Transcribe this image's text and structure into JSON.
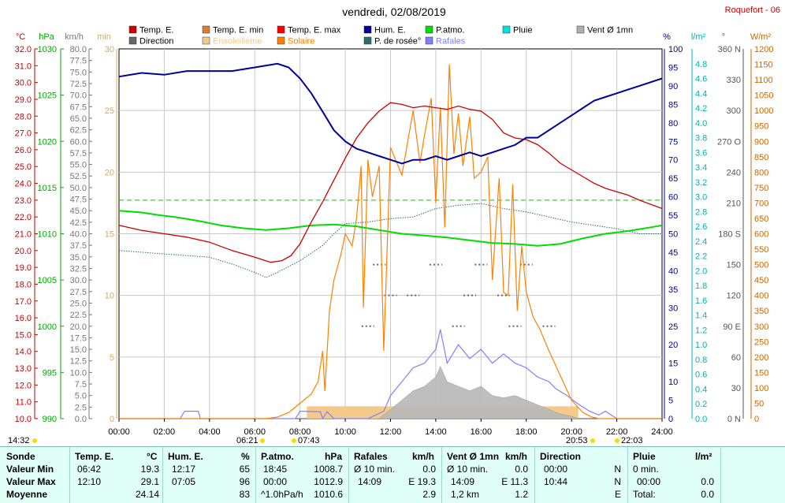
{
  "title": "vendredi, 02/08/2019",
  "station": "Roquefort - 06",
  "colors": {
    "temp": "#cc0000",
    "temp_min": "#e07a3a",
    "temp_max": "#ff0000",
    "direction": "#666666",
    "ensoleillement": "#f5c98a",
    "solaire": "#ff8000",
    "humidity": "#000099",
    "dew": "#2a6e6e",
    "pressure": "#00dd00",
    "pluie": "#00cccc",
    "rafales": "#8080ff",
    "vent": "#b0b0b0",
    "axis_c": "#cc0000",
    "axis_hpa": "#00aa00",
    "axis_kmh": "#777777",
    "axis_min": "#d9a95a",
    "axis_pct": "#000099",
    "axis_rain": "#00b3b3",
    "axis_deg": "#555555",
    "axis_w": "#cc6600"
  },
  "legend": [
    {
      "label": "Temp. E.",
      "color": "#cc0000"
    },
    {
      "label": "Temp. E. min",
      "color": "#e07a3a"
    },
    {
      "label": "Temp. E. max",
      "color": "#ff0000"
    },
    {
      "label": "Hum. E.",
      "color": "#000099"
    },
    {
      "label": "P.atmo.",
      "color": "#00dd00"
    },
    {
      "label": "Pluie",
      "color": "#00e0e0"
    },
    {
      "label": "Vent Ø 1mn",
      "color": "#b0b0b0"
    },
    {
      "label": "Direction",
      "color": "#666666"
    },
    {
      "label": "Ensoleilleme",
      "color": "#f5c98a"
    },
    {
      "label": "Solaire",
      "color": "#ff8000"
    },
    {
      "label": "P. de rosée°",
      "color": "#2a6e6e"
    },
    {
      "label": "Rafales",
      "color": "#8080ff"
    }
  ],
  "axes": {
    "c": {
      "unit": "°C",
      "min": 10,
      "max": 32,
      "step": 1
    },
    "hpa": {
      "unit": "hPa",
      "min": 990,
      "max": 1030,
      "step": 5
    },
    "kmh": {
      "unit": "km/h",
      "min": 0,
      "max": 80,
      "step": 2.5
    },
    "min": {
      "unit": "min",
      "min": 0,
      "max": 30,
      "ticks": [
        0,
        5,
        10,
        15,
        20,
        25,
        30
      ]
    },
    "pct": {
      "unit": "%",
      "min": 0,
      "max": 100,
      "step": 5
    },
    "rain": {
      "unit": "l/m²",
      "min": 0,
      "max": 5,
      "step": 0.2
    },
    "deg": {
      "unit": "°",
      "min": 0,
      "max": 360,
      "ticks": [
        "0 N",
        "30",
        "60",
        "90 E",
        "120",
        "150",
        "180 S",
        "210",
        "240",
        "270 O",
        "300",
        "330",
        "360 N"
      ]
    },
    "w": {
      "unit": "W/m²",
      "min": 0,
      "max": 1200,
      "step": 50
    }
  },
  "time_ticks": [
    "00:00",
    "02:00",
    "04:00",
    "06:00",
    "08:00",
    "10:00",
    "12:00",
    "14:00",
    "16:00",
    "18:00",
    "20:00",
    "22:00",
    "24:00"
  ],
  "markers": {
    "moon_rise": "14:32",
    "sunrise": "06:21",
    "sun_up_time": "07:43",
    "sunset": "20:53",
    "moon_set": "22:03"
  },
  "chart_data": {
    "type": "line",
    "x_unit": "hour",
    "series": [
      {
        "name": "Temp. E.",
        "axis": "°C",
        "x": [
          0,
          1,
          2,
          3,
          4,
          5,
          6,
          6.7,
          7.2,
          7.6,
          8,
          8.5,
          9,
          9.5,
          10,
          10.5,
          11,
          11.5,
          12,
          12.5,
          13,
          13.5,
          14,
          14.5,
          15,
          15.5,
          16,
          16.5,
          17,
          17.5,
          18,
          18.5,
          19,
          19.5,
          20,
          20.5,
          21,
          21.5,
          22,
          22.5,
          23,
          24
        ],
        "y": [
          21.5,
          21.2,
          21.0,
          20.8,
          20.5,
          20.0,
          19.6,
          19.3,
          19.4,
          19.7,
          20.4,
          21.7,
          22.9,
          24.2,
          25.5,
          26.7,
          27.6,
          28.3,
          28.8,
          28.7,
          28.5,
          28.6,
          28.5,
          28.4,
          28.6,
          28.4,
          28.3,
          27.8,
          27.0,
          26.7,
          26.6,
          26.3,
          25.8,
          25.2,
          24.8,
          24.4,
          24.0,
          23.7,
          23.5,
          23.3,
          23.0,
          22.5
        ]
      },
      {
        "name": "Hum. E.",
        "axis": "%",
        "x": [
          0,
          1,
          2,
          3,
          4,
          5,
          6,
          7,
          7.5,
          8,
          8.5,
          9,
          9.5,
          10,
          10.5,
          11,
          11.5,
          12,
          12.5,
          13,
          13.5,
          14,
          14.5,
          15,
          15.5,
          16,
          16.5,
          17,
          17.5,
          18,
          18.5,
          19,
          19.5,
          20,
          20.5,
          21,
          21.5,
          22,
          22.5,
          23,
          24
        ],
        "y": [
          92.5,
          93.5,
          93,
          94,
          94,
          94,
          95,
          96,
          95,
          92,
          88,
          83,
          78,
          75,
          73,
          72,
          71,
          70,
          69,
          70,
          70,
          71,
          70,
          71,
          72,
          71,
          72,
          73,
          74,
          76,
          76,
          78,
          80,
          82,
          84,
          86,
          87,
          88,
          89,
          90,
          92
        ]
      },
      {
        "name": "P.atmo.",
        "axis": "hPa",
        "x": [
          0,
          1,
          1.8,
          2.5,
          3.5,
          4.5,
          5.5,
          6.5,
          7.5,
          8.5,
          9.5,
          10.5,
          11.5,
          12.5,
          13.5,
          14.5,
          15.5,
          16.5,
          17.5,
          18.5,
          19.5,
          20.5,
          21.5,
          22.5,
          23.5,
          24
        ],
        "y": [
          1012.5,
          1012.3,
          1012.0,
          1011.8,
          1011.4,
          1010.9,
          1010.6,
          1010.4,
          1010.6,
          1010.9,
          1011.0,
          1010.8,
          1010.4,
          1010.0,
          1009.8,
          1009.6,
          1009.3,
          1009.0,
          1008.9,
          1008.7,
          1008.9,
          1009.5,
          1010.0,
          1010.3,
          1010.7,
          1010.9
        ]
      },
      {
        "name": "P. de rosée°",
        "axis": "°C",
        "x": [
          0,
          2,
          4,
          5,
          6,
          6.5,
          7,
          8,
          9,
          9.5,
          10,
          11,
          12,
          13,
          14,
          15,
          16,
          17,
          18,
          19,
          20,
          21,
          22,
          23,
          24
        ],
        "y": [
          20.0,
          19.8,
          19.6,
          19.2,
          18.7,
          18.4,
          18.7,
          19.4,
          20.3,
          21.0,
          21.6,
          21.7,
          21.9,
          22.0,
          22.5,
          22.7,
          22.8,
          22.5,
          22.3,
          22.0,
          21.7,
          21.5,
          21.3,
          21.0,
          21.0
        ]
      },
      {
        "name": "Solaire",
        "axis": "W/m²",
        "x": [
          0,
          6.5,
          7,
          7.5,
          8,
          8.5,
          8.8,
          9,
          9.1,
          9.3,
          9.5,
          9.8,
          10,
          10.3,
          10.5,
          10.7,
          10.8,
          11,
          11.2,
          11.5,
          11.7,
          12,
          12.5,
          13,
          13.3,
          13.5,
          13.8,
          14,
          14.2,
          14.4,
          14.6,
          14.8,
          15,
          15.2,
          15.5,
          15.7,
          16,
          16.3,
          16.5,
          16.8,
          17,
          17.2,
          17.4,
          17.6,
          17.8,
          18,
          18.3,
          18.6,
          19,
          19.5,
          20,
          20.5,
          20.9,
          21.2,
          24
        ],
        "y": [
          0,
          0,
          5,
          20,
          50,
          80,
          120,
          220,
          90,
          350,
          450,
          530,
          600,
          560,
          650,
          820,
          360,
          840,
          720,
          820,
          220,
          880,
          790,
          1000,
          830,
          920,
          1040,
          700,
          1010,
          620,
          1150,
          860,
          990,
          820,
          980,
          780,
          800,
          850,
          450,
          780,
          410,
          400,
          760,
          350,
          560,
          410,
          330,
          290,
          220,
          140,
          60,
          20,
          5,
          0,
          0
        ]
      },
      {
        "name": "Rafales",
        "axis": "km/h",
        "x": [
          0,
          2.7,
          2.9,
          3.5,
          3.6,
          7.8,
          8,
          8.9,
          9,
          9.2,
          9.5,
          11,
          11.7,
          12,
          12.5,
          13,
          13.5,
          14,
          14.2,
          14.5,
          15,
          15.5,
          16,
          16.5,
          17,
          17.5,
          18,
          18.5,
          19,
          19.3,
          19.8,
          20.2,
          20.5,
          20.8,
          21.2,
          21.5,
          22,
          24
        ],
        "y": [
          0,
          0,
          1.6,
          1.6,
          0,
          0,
          1.6,
          1.5,
          0,
          1.5,
          0,
          0,
          1.6,
          5,
          8,
          11,
          12,
          15,
          19.3,
          12,
          16,
          13,
          15,
          12,
          14,
          12,
          11,
          9,
          8,
          6.5,
          5,
          3.5,
          2.5,
          1.6,
          0.8,
          1.6,
          0,
          0
        ]
      },
      {
        "name": "Vent Ø 1mn",
        "axis": "km/h",
        "x": [
          0,
          11.5,
          12,
          12.5,
          13,
          13.5,
          14,
          14.2,
          14.5,
          15,
          15.5,
          16,
          16.5,
          17,
          17.5,
          18,
          18.5,
          19,
          19.5,
          20,
          20.3,
          24
        ],
        "y": [
          0,
          0,
          2,
          4,
          6,
          7,
          9,
          11.3,
          8,
          7,
          6,
          7,
          5,
          4.5,
          5,
          4,
          3,
          2,
          1,
          0.5,
          0,
          0
        ]
      },
      {
        "name": "Ensoleilleme",
        "axis": "min",
        "x": [
          8.3,
          20.3
        ],
        "y": [
          1,
          1
        ]
      },
      {
        "name": "Direction",
        "axis": "°",
        "x": [
          11,
          11.5,
          12,
          13,
          14,
          15,
          15.5,
          16,
          17,
          17.5,
          18,
          19
        ],
        "y": [
          90,
          150,
          120,
          120,
          150,
          90,
          120,
          150,
          120,
          90,
          150,
          90
        ]
      }
    ],
    "reference_line": {
      "axis": "°C",
      "value": 23.0,
      "style": "dashed",
      "color": "#00cc00"
    }
  },
  "stats": {
    "headers": [
      {
        "label": "Sonde",
        "unit": ""
      },
      {
        "label": "Temp. E.",
        "unit": "°C"
      },
      {
        "label": "Hum. E.",
        "unit": "%"
      },
      {
        "label": "P.atmo.",
        "unit": "hPa"
      },
      {
        "label": "Rafales",
        "unit": "km/h"
      },
      {
        "label": "Vent Ø 1mn",
        "unit": "km/h"
      },
      {
        "label": "Direction",
        "unit": ""
      },
      {
        "label": "Pluie",
        "unit": "l/m²"
      }
    ],
    "rows": [
      {
        "label": "Valeur Min",
        "temp_t": "06:42",
        "temp_v": "19.3",
        "hum_t": "12:17",
        "hum_v": "65",
        "pres_t": "18:45",
        "pres_v": "1008.7",
        "raf_t": "Ø 10 min.",
        "raf_v": "0.0",
        "vent_t": "Ø 10 min.",
        "vent_v": "0.0",
        "dir_t": "00:00",
        "dir_v": "N",
        "rain_t": "0 min.",
        "rain_v": ""
      },
      {
        "label": "Valeur Max",
        "temp_t": "12:10",
        "temp_v": "29.1",
        "hum_t": "07:05",
        "hum_v": "96",
        "pres_t": "00:00",
        "pres_v": "1012.9",
        "raf_t": "14:09",
        "raf_v": "E 19.3",
        "vent_t": "14:09",
        "vent_v": "E 11.3",
        "dir_t": "10:44",
        "dir_v": "N",
        "rain_t": "00:00",
        "rain_v": "0.0"
      },
      {
        "label": "Moyenne",
        "temp_t": "",
        "temp_v": "24.14",
        "hum_t": "",
        "hum_v": "83",
        "pres_t": "^1.0hPa/h",
        "pres_v": "1010.6",
        "raf_t": "",
        "raf_v": "2.9",
        "vent_t": "1,2 km",
        "vent_v": "1.2",
        "dir_t": "",
        "dir_v": "E",
        "rain_t": "Total:",
        "rain_v": "0.0"
      }
    ]
  }
}
